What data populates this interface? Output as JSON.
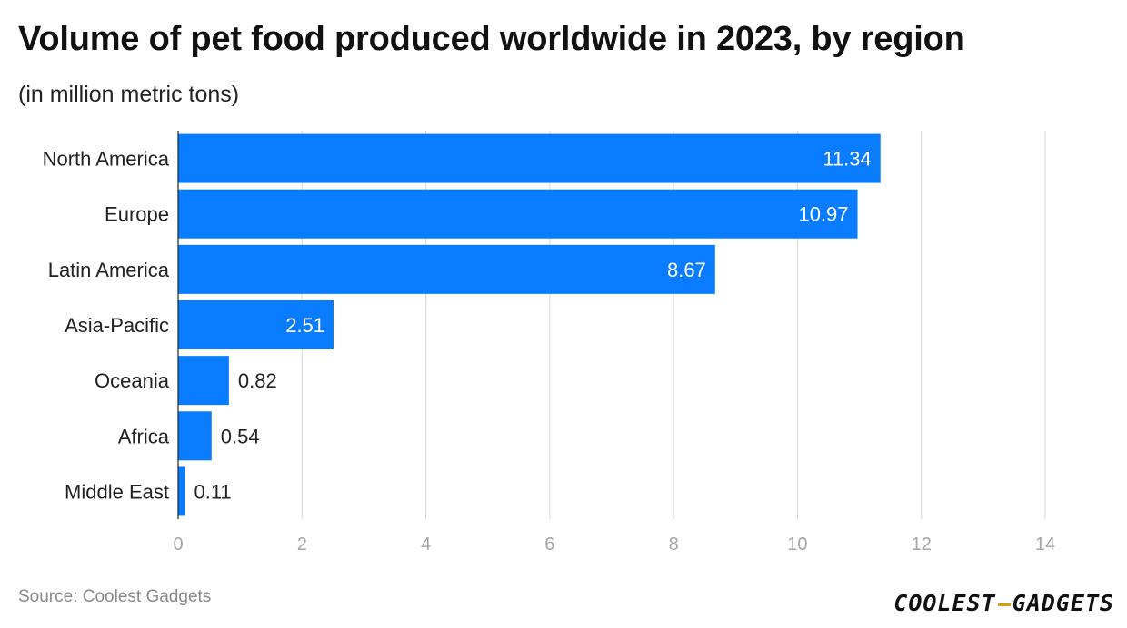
{
  "title": "Volume of pet food produced worldwide in 2023, by region",
  "subtitle": "(in million metric tons)",
  "source": "Source: Coolest Gadgets",
  "logo": {
    "left": "COOLEST",
    "right": "GADGETS",
    "accent_color": "#d9a000"
  },
  "colors": {
    "bar": "#0a7cff",
    "grid": "#dddddd",
    "tick": "#a6a6a6",
    "label_inside": "#ffffff",
    "label_outside": "#222222"
  },
  "chart_data": {
    "type": "bar",
    "orientation": "horizontal",
    "categories": [
      "North America",
      "Europe",
      "Latin America",
      "Asia-Pacific",
      "Oceania",
      "Africa",
      "Middle East"
    ],
    "values": [
      11.34,
      10.97,
      8.67,
      2.51,
      0.82,
      0.54,
      0.11
    ],
    "value_labels": [
      "11.34",
      "10.97",
      "8.67",
      "2.51",
      "0.82",
      "0.54",
      "0.11"
    ],
    "xlim": [
      0,
      14
    ],
    "xticks": [
      0,
      2,
      4,
      6,
      8,
      10,
      12,
      14
    ],
    "xlabel": "",
    "ylabel": "",
    "grid": true
  }
}
